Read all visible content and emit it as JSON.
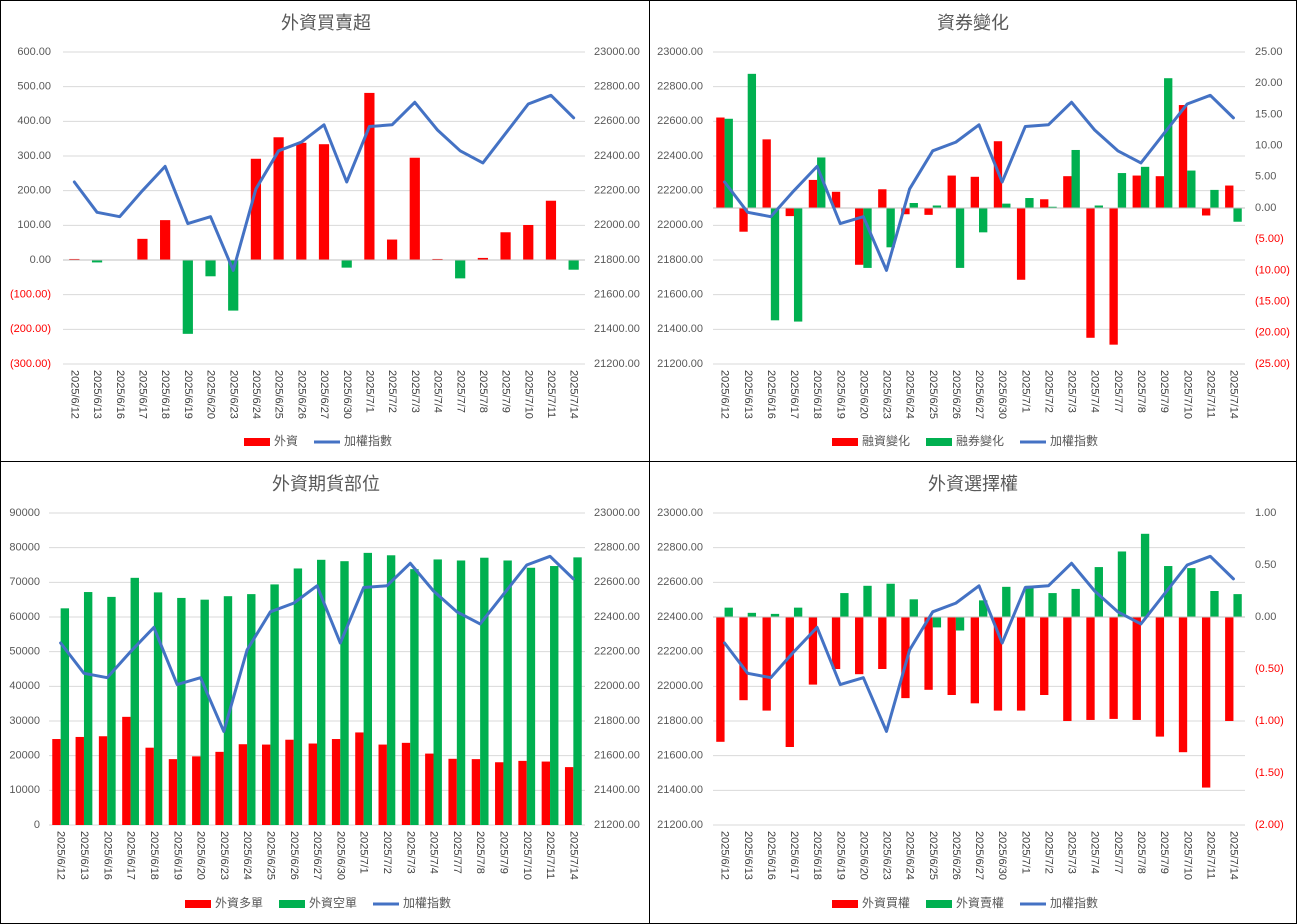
{
  "colors": {
    "red": "#ff0000",
    "green": "#00b050",
    "blue": "#4472c4"
  },
  "dates": [
    "2025/6/12",
    "2025/6/13",
    "2025/6/16",
    "2025/6/17",
    "2025/6/18",
    "2025/6/19",
    "2025/6/20",
    "2025/6/23",
    "2025/6/24",
    "2025/6/25",
    "2025/6/26",
    "2025/6/27",
    "2025/6/30",
    "2025/7/1",
    "2025/7/2",
    "2025/7/3",
    "2025/7/4",
    "2025/7/7",
    "2025/7/8",
    "2025/7/9",
    "2025/7/10",
    "2025/7/11",
    "2025/7/14"
  ],
  "chart_data": [
    {
      "type": "bar",
      "title": "外資買賣超",
      "categories_ref": "dates",
      "series": [
        {
          "name": "外資",
          "kind": "bar",
          "axis": "primary",
          "color": "#ff0000",
          "negColor": "#00b050",
          "values": [
            3,
            -7,
            0,
            61,
            115,
            -213,
            -47,
            -146,
            292,
            354,
            338,
            334,
            -22,
            482,
            59,
            295,
            3,
            -53,
            6,
            80,
            101,
            171,
            -28
          ]
        },
        {
          "name": "加權指數",
          "kind": "line",
          "axis": "secondary",
          "color": "#4472c4",
          "values": [
            22250,
            22075,
            22050,
            22200,
            22340,
            22010,
            22050,
            21740,
            22210,
            22430,
            22480,
            22580,
            22250,
            22570,
            22580,
            22710,
            22550,
            22430,
            22360,
            22530,
            22700,
            22750,
            22620
          ]
        }
      ],
      "primary_axis": {
        "min": -300,
        "max": 600,
        "step": 100,
        "labels": [
          "600.00",
          "500.00",
          "400.00",
          "300.00",
          "200.00",
          "100.00",
          "0.00",
          "(100.00)",
          "(200.00)",
          "(300.00)"
        ]
      },
      "secondary_axis": {
        "min": 21200,
        "max": 23000,
        "step": 200,
        "labels": [
          "23000.00",
          "22800.00",
          "22600.00",
          "22400.00",
          "22200.00",
          "22000.00",
          "21800.00",
          "21600.00",
          "21400.00",
          "21200.00"
        ]
      },
      "legend": [
        "外資",
        "加權指數"
      ]
    },
    {
      "type": "bar",
      "title": "資券變化",
      "categories_ref": "dates",
      "series": [
        {
          "name": "融資變化",
          "kind": "bar",
          "axis": "secondary",
          "color": "#ff0000",
          "values": [
            14.5,
            -3.8,
            11,
            -1.3,
            4.5,
            2.6,
            -9.1,
            3,
            -1,
            -1.1,
            5.2,
            5,
            10.7,
            -11.5,
            1.4,
            5.1,
            -20.8,
            -21.9,
            5.2,
            5.1,
            16.5,
            -1.2,
            3.6
          ]
        },
        {
          "name": "融券變化",
          "kind": "bar",
          "axis": "secondary",
          "color": "#00b050",
          "values": [
            14.3,
            21.5,
            -18,
            -18.2,
            8.1,
            0,
            -9.6,
            -6.3,
            0.8,
            0.4,
            -9.6,
            -3.9,
            0.7,
            1.6,
            0.2,
            9.3,
            0.4,
            5.6,
            6.6,
            20.8,
            6,
            2.9,
            -2.2
          ]
        },
        {
          "name": "加權指數",
          "kind": "line",
          "axis": "primary",
          "color": "#4472c4",
          "values": [
            22250,
            22075,
            22050,
            22200,
            22340,
            22010,
            22050,
            21740,
            22210,
            22430,
            22480,
            22580,
            22250,
            22570,
            22580,
            22710,
            22550,
            22430,
            22360,
            22530,
            22700,
            22750,
            22620
          ]
        }
      ],
      "primary_axis": {
        "min": 21200,
        "max": 23000,
        "step": 200,
        "labels": [
          "23000.00",
          "22800.00",
          "22600.00",
          "22400.00",
          "22200.00",
          "22000.00",
          "21800.00",
          "21600.00",
          "21400.00",
          "21200.00"
        ]
      },
      "secondary_axis": {
        "min": -25,
        "max": 25,
        "step": 5,
        "labels": [
          "25.00",
          "20.00",
          "15.00",
          "10.00",
          "5.00",
          "0.00",
          "(5.00)",
          "(10.00)",
          "(15.00)",
          "(20.00)",
          "(25.00)"
        ]
      },
      "legend": [
        "融資變化",
        "融券變化",
        "加權指數"
      ]
    },
    {
      "type": "bar",
      "title": "外資期貨部位",
      "categories_ref": "dates",
      "series": [
        {
          "name": "外資多單",
          "kind": "bar",
          "axis": "primary",
          "color": "#ff0000",
          "values": [
            24800,
            25400,
            25600,
            31200,
            22300,
            19000,
            19800,
            21100,
            23300,
            23200,
            24600,
            23500,
            24800,
            26700,
            23200,
            23700,
            20600,
            19100,
            19000,
            18100,
            18500,
            18300,
            16700
          ]
        },
        {
          "name": "外資空單",
          "kind": "bar",
          "axis": "primary",
          "color": "#00b050",
          "values": [
            62500,
            67200,
            65800,
            71300,
            67100,
            65500,
            65000,
            66000,
            66600,
            69400,
            74000,
            76500,
            76100,
            78500,
            77800,
            73800,
            76600,
            76300,
            77100,
            76300,
            74200,
            74700,
            77200
          ]
        },
        {
          "name": "加權指數",
          "kind": "line",
          "axis": "secondary",
          "color": "#4472c4",
          "values": [
            22250,
            22075,
            22050,
            22200,
            22340,
            22010,
            22050,
            21740,
            22210,
            22430,
            22480,
            22580,
            22250,
            22570,
            22580,
            22710,
            22550,
            22430,
            22360,
            22530,
            22700,
            22750,
            22620
          ]
        }
      ],
      "primary_axis": {
        "min": 0,
        "max": 90000,
        "step": 10000,
        "labels": [
          "90000",
          "80000",
          "70000",
          "60000",
          "50000",
          "40000",
          "30000",
          "20000",
          "10000",
          "0"
        ]
      },
      "secondary_axis": {
        "min": 21200,
        "max": 23000,
        "step": 200,
        "labels": [
          "23000.00",
          "22800.00",
          "22600.00",
          "22400.00",
          "22200.00",
          "22000.00",
          "21800.00",
          "21600.00",
          "21400.00",
          "21200.00"
        ]
      },
      "legend": [
        "外資多單",
        "外資空單",
        "加權指數"
      ]
    },
    {
      "type": "bar",
      "title": "外資選擇權",
      "categories_ref": "dates",
      "series": [
        {
          "name": "外資買權",
          "kind": "bar",
          "axis": "secondary",
          "color": "#ff0000",
          "values": [
            -1.2,
            -0.8,
            -0.9,
            -1.25,
            -0.65,
            -0.5,
            -0.55,
            -0.5,
            -0.78,
            -0.7,
            -0.75,
            -0.83,
            -0.9,
            -0.9,
            -0.75,
            -1,
            -0.99,
            -0.98,
            -0.99,
            -1.15,
            -1.3,
            -1.64,
            -1
          ]
        },
        {
          "name": "外資賣權",
          "kind": "bar",
          "axis": "secondary",
          "color": "#00b050",
          "values": [
            0.09,
            0.04,
            0.03,
            0.09,
            0,
            0.23,
            0.3,
            0.32,
            0.17,
            -0.1,
            -0.13,
            0.16,
            0.29,
            0.3,
            0.23,
            0.27,
            0.48,
            0.63,
            0.8,
            0.49,
            0.47,
            0.25,
            0.22
          ]
        },
        {
          "name": "加權指數",
          "kind": "line",
          "axis": "primary",
          "color": "#4472c4",
          "values": [
            22250,
            22075,
            22050,
            22200,
            22340,
            22010,
            22050,
            21740,
            22210,
            22430,
            22480,
            22580,
            22250,
            22570,
            22580,
            22710,
            22550,
            22430,
            22360,
            22530,
            22700,
            22750,
            22620
          ]
        }
      ],
      "primary_axis": {
        "min": 21200,
        "max": 23000,
        "step": 200,
        "labels": [
          "23000.00",
          "22800.00",
          "22600.00",
          "22400.00",
          "22200.00",
          "22000.00",
          "21800.00",
          "21600.00",
          "21400.00",
          "21200.00"
        ]
      },
      "secondary_axis": {
        "min": -2,
        "max": 1,
        "step": 0.5,
        "labels": [
          "1.00",
          "0.50",
          "0.00",
          "(0.50)",
          "(1.00)",
          "(1.50)",
          "(2.00)"
        ]
      },
      "legend": [
        "外資買權",
        "外資賣權",
        "加權指數"
      ]
    }
  ]
}
